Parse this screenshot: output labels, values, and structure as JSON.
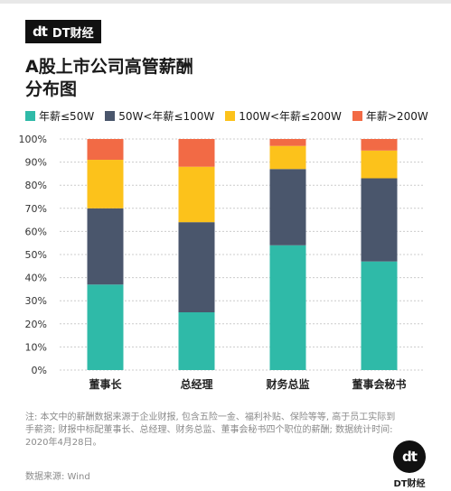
{
  "brand": {
    "mark": "dt",
    "name": "DT财经"
  },
  "title": "A股上市公司高管薪酬\n分布图",
  "note": "注: 本文中的薪酬数据来源于企业财报, 包含五险一金、福利补贴、保险等等, 高于员工实际到手薪资; 财报中标配董事长、总经理、财务总监、董事会秘书四个职位的薪酬; 数据统计时间: 2020年4月28日。",
  "source": "数据来源: Wind",
  "colors": {
    "series1": "#2fbaa8",
    "series2": "#4a566c",
    "series3": "#fcc21b",
    "series4": "#f26a45",
    "grid": "#cccccc"
  },
  "chart_data": {
    "type": "bar",
    "stacked": true,
    "categories": [
      "董事长",
      "总经理",
      "财务总监",
      "董事会秘书"
    ],
    "series": [
      {
        "name": "年薪≤50W",
        "values": [
          37,
          25,
          54,
          47
        ]
      },
      {
        "name": "50W<年薪≤100W",
        "values": [
          33,
          39,
          33,
          36
        ]
      },
      {
        "name": "100W<年薪≤200W",
        "values": [
          21,
          24,
          10,
          12
        ]
      },
      {
        "name": "年薪>200W",
        "values": [
          9,
          12,
          3,
          5
        ]
      }
    ],
    "ylim": [
      0,
      100
    ],
    "yticks": [
      "0%",
      "10%",
      "20%",
      "30%",
      "40%",
      "50%",
      "60%",
      "70%",
      "80%",
      "90%",
      "100%"
    ],
    "legend_position": "top",
    "grid": true
  }
}
